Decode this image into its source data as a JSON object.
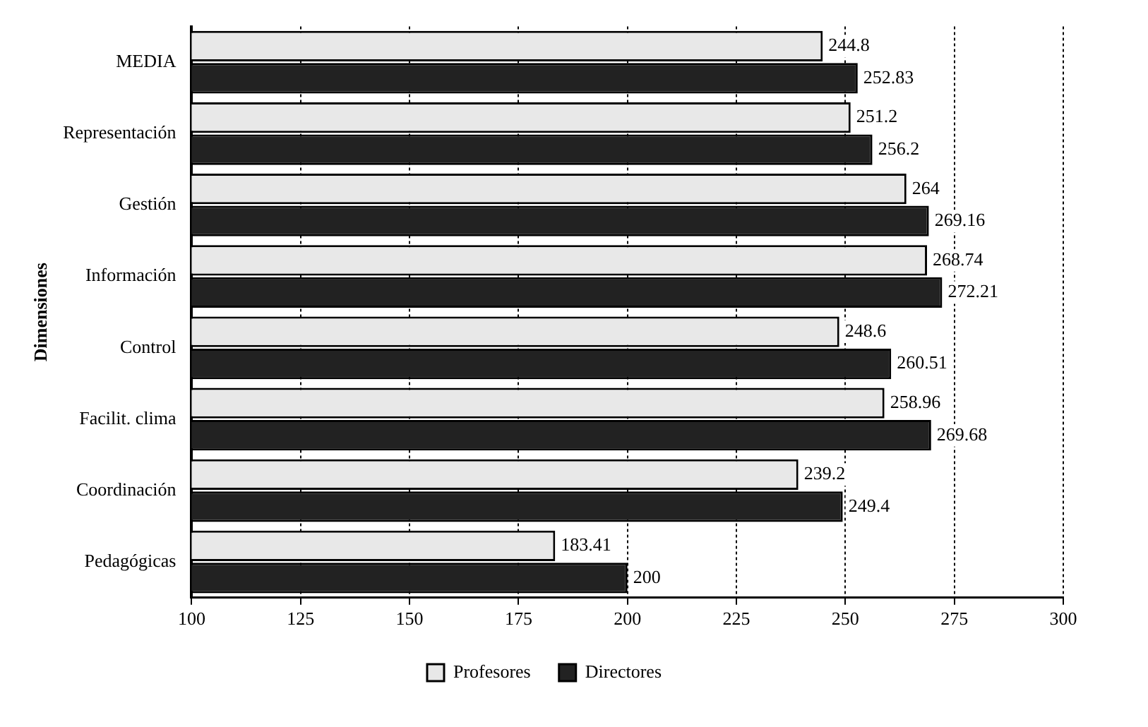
{
  "chart_data": {
    "type": "bar",
    "orientation": "horizontal",
    "ylabel": "Dimensiones",
    "categories": [
      "MEDIA",
      "Representación",
      "Gestión",
      "Información",
      "Control",
      "Facilit. clima",
      "Coordinación",
      "Pedagógicas"
    ],
    "series": [
      {
        "name": "Profesores",
        "color": "#e8e8e8",
        "values": [
          244.8,
          251.2,
          264,
          268.74,
          248.6,
          258.96,
          239.2,
          183.41
        ]
      },
      {
        "name": "Directores",
        "color": "#222222",
        "values": [
          252.83,
          256.2,
          269.16,
          272.21,
          260.51,
          269.68,
          249.4,
          200
        ]
      }
    ],
    "xlim": [
      100,
      300
    ],
    "xticks": [
      100,
      125,
      150,
      175,
      200,
      225,
      250,
      275,
      300
    ],
    "grid": "x",
    "legend": "bottom",
    "data_labels": true
  }
}
